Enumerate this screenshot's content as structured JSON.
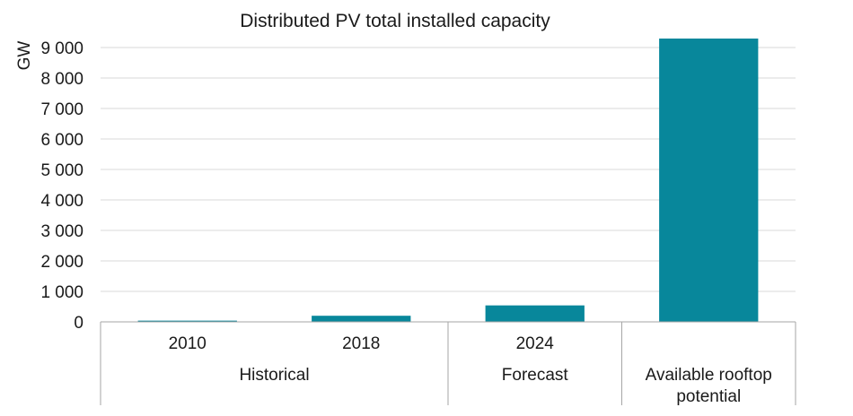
{
  "chart_data": {
    "type": "bar",
    "title": "Distributed PV total installed capacity",
    "ylabel": "GW",
    "xlabel": "",
    "ylim": [
      0,
      9000
    ],
    "yticks": [
      0,
      1000,
      2000,
      3000,
      4000,
      5000,
      6000,
      7000,
      8000,
      9000
    ],
    "ytick_labels": [
      "0",
      "1 000",
      "2 000",
      "3 000",
      "4 000",
      "5 000",
      "6 000",
      "7 000",
      "8 000",
      "9 000"
    ],
    "categories": [
      "2010",
      "2018",
      "2024",
      "Available rooftop potential"
    ],
    "values": [
      40,
      200,
      540,
      9300
    ],
    "groups": [
      {
        "label": "Historical",
        "members": [
          "2010",
          "2018"
        ]
      },
      {
        "label": "Forecast",
        "members": [
          "2024"
        ]
      },
      {
        "label": "",
        "members": [
          "Available rooftop potential"
        ]
      }
    ],
    "bar_color": "#08879b",
    "grid": true,
    "legend": "none"
  }
}
